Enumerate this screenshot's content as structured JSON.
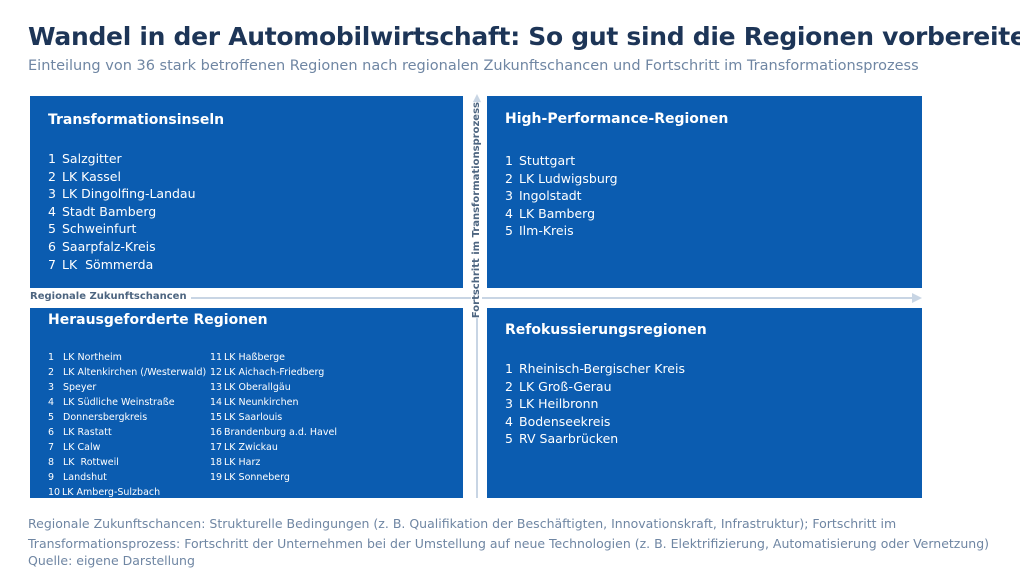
{
  "header": {
    "title": "Wandel in der Automobilwirtschaft: So gut sind die Regionen vorbereitet",
    "subtitle": "Einteilung von 36 stark betroffenen Regionen nach regionalen Zukunftschancen und Fortschritt im Transformationsprozess"
  },
  "axes": {
    "x_label": "Regionale Zukunftschancen",
    "y_label": "Fortschritt im Transformationsprozess"
  },
  "quadrants": [
    {
      "title": "Transformationsinseln",
      "items": [
        {
          "n": "1",
          "name": "Salzgitter"
        },
        {
          "n": "2",
          "name": "LK Kassel"
        },
        {
          "n": "3",
          "name": "LK Dingolfing-Landau"
        },
        {
          "n": "4",
          "name": "Stadt Bamberg"
        },
        {
          "n": "5",
          "name": "Schweinfurt"
        },
        {
          "n": "6",
          "name": "Saarpfalz-Kreis"
        },
        {
          "n": "7",
          "name": "LK  Sömmerda"
        }
      ]
    },
    {
      "title": "High-Performance-Regionen",
      "items": [
        {
          "n": "1",
          "name": "Stuttgart"
        },
        {
          "n": "2",
          "name": "LK Ludwigsburg"
        },
        {
          "n": "3",
          "name": "Ingolstadt"
        },
        {
          "n": "4",
          "name": "LK Bamberg"
        },
        {
          "n": "5",
          "name": "Ilm-Kreis"
        }
      ]
    },
    {
      "title": "Herausgeforderte Regionen",
      "items": [
        {
          "n": "1",
          "name": "LK Northeim"
        },
        {
          "n": "2",
          "name": "LK Altenkirchen (/Westerwald)"
        },
        {
          "n": "3",
          "name": "Speyer"
        },
        {
          "n": "4",
          "name": "LK Südliche Weinstraße"
        },
        {
          "n": "5",
          "name": "Donnersbergkreis"
        },
        {
          "n": "6",
          "name": "LK Rastatt"
        },
        {
          "n": "7",
          "name": "LK Calw"
        },
        {
          "n": "8",
          "name": "LK  Rottweil"
        },
        {
          "n": "9",
          "name": "Landshut"
        },
        {
          "n": "10",
          "name": "LK Amberg-Sulzbach"
        },
        {
          "n": "11",
          "name": "LK Haßberge"
        },
        {
          "n": "12",
          "name": "LK Aichach-Friedberg"
        },
        {
          "n": "13",
          "name": "LK Oberallgäu"
        },
        {
          "n": "14",
          "name": "LK Neunkirchen"
        },
        {
          "n": "15",
          "name": "LK Saarlouis"
        },
        {
          "n": "16",
          "name": "Brandenburg a.d. Havel"
        },
        {
          "n": "17",
          "name": "LK Zwickau"
        },
        {
          "n": "18",
          "name": "LK Harz"
        },
        {
          "n": "19",
          "name": "LK Sonneberg"
        }
      ]
    },
    {
      "title": "Refokussierungsregionen",
      "items": [
        {
          "n": "1",
          "name": "Rheinisch-Bergischer Kreis"
        },
        {
          "n": "2",
          "name": "LK Groß-Gerau"
        },
        {
          "n": "3",
          "name": "LK Heilbronn"
        },
        {
          "n": "4",
          "name": "Bodenseekreis"
        },
        {
          "n": "5",
          "name": "RV Saarbrücken"
        }
      ]
    }
  ],
  "footer": {
    "note": "Regionale Zukunftschancen: Strukturelle Bedingungen (z. B. Qualifikation der Beschäftigten, Innovationskraft, Infrastruktur); Fortschritt im  Transformationsprozess: Fortschritt der Unternehmen bei der Umstellung auf neue Technologien (z. B. Elektrifizierung, Automatisierung oder Vernetzung)",
    "source": "Quelle: eigene Darstellung"
  }
}
